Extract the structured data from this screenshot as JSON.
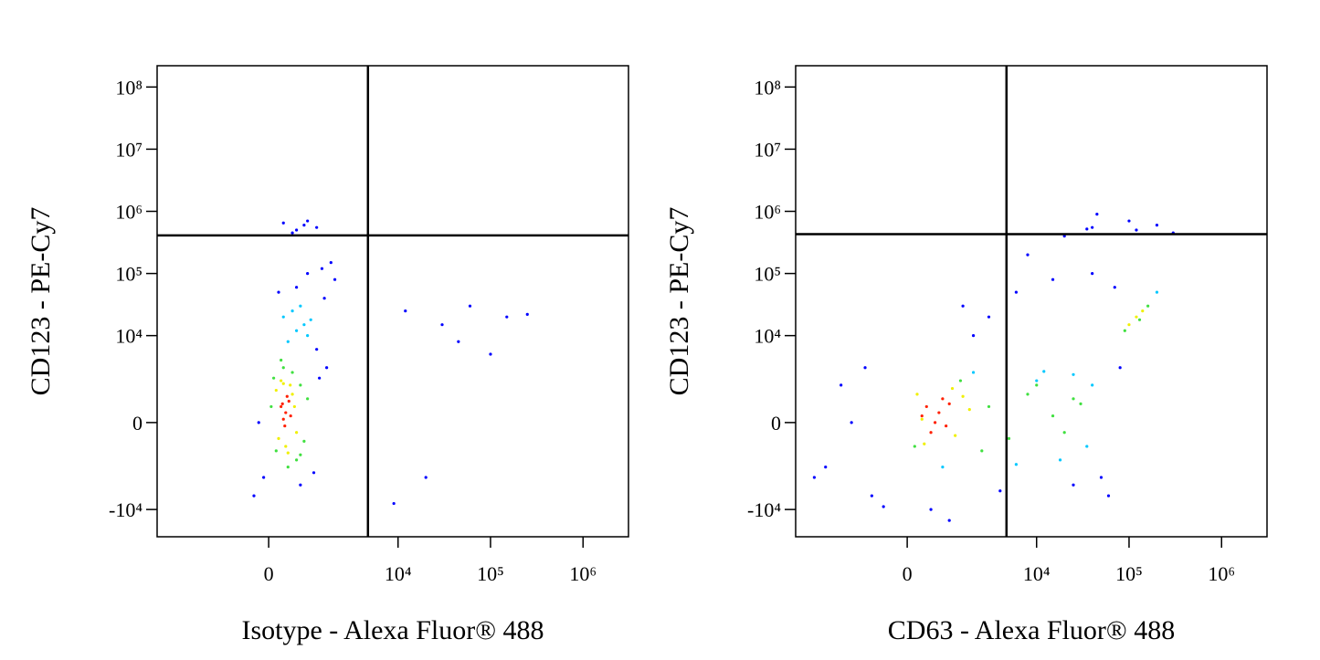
{
  "chart_data": [
    {
      "type": "scatter",
      "x_label": "Isotype - Alexa Fluor® 488",
      "y_label": "CD123 - PE-Cy7",
      "scale": "biexponential",
      "xlim": [
        -6400,
        3100000
      ],
      "ylim": [
        -27500,
        220000000
      ],
      "xticks": [
        0,
        {
          "value": 10000,
          "label": "10⁴"
        },
        {
          "value": 100000,
          "label": "10⁵"
        },
        {
          "value": 1000000,
          "label": "10⁶"
        }
      ],
      "yticks": [
        {
          "value": -10000,
          "label": "-10⁴"
        },
        0,
        {
          "value": 10000,
          "label": "10⁴"
        },
        {
          "value": 100000,
          "label": "10⁵"
        },
        {
          "value": 1000000,
          "label": "10⁶"
        },
        {
          "value": 10000000,
          "label": "10⁷"
        },
        {
          "value": 100000000,
          "label": "10⁸"
        }
      ],
      "gates": {
        "x": 4700,
        "y": 410000
      },
      "series": [
        {
          "color": "#0000ff",
          "x": [
            -200,
            1100,
            1300,
            -100,
            1200,
            1500,
            600,
            900,
            200,
            1400,
            700,
            1600,
            -300,
            2000,
            1800,
            500,
            800,
            12000,
            30000,
            45000,
            60000,
            100000,
            150000,
            250000,
            20000,
            9000,
            600,
            900,
            1200,
            300
          ],
          "values": [
            0,
            -2500,
            2000,
            -3000,
            6000,
            40000,
            60000,
            100000,
            50000,
            120000,
            -4000,
            3000,
            -6000,
            80000,
            150000,
            450000,
            600000,
            25000,
            15000,
            8000,
            30000,
            5000,
            20000,
            22000,
            -3000,
            -8000,
            500000,
            700000,
            550000,
            650000
          ]
        },
        {
          "color": "#00c8ff",
          "x": [
            400,
            600,
            800,
            300,
            900,
            500,
            700,
            1000
          ],
          "values": [
            8000,
            12000,
            15000,
            20000,
            10000,
            25000,
            30000,
            18000
          ]
        },
        {
          "color": "#40e040",
          "x": [
            100,
            700,
            800,
            50,
            600,
            400,
            900,
            150,
            300,
            500,
            700,
            250
          ],
          "values": [
            2000,
            1500,
            -600,
            500,
            -1500,
            -2000,
            800,
            -1000,
            3000,
            2500,
            -1200,
            4000
          ]
        },
        {
          "color": "#f0f000",
          "x": [
            150,
            500,
            600,
            200,
            450,
            550,
            350,
            250,
            400,
            300
          ],
          "values": [
            1200,
            1000,
            -300,
            -500,
            1500,
            500,
            -800,
            1800,
            -1100,
            1600
          ]
        },
        {
          "color": "#ff2000",
          "x": [
            250,
            350,
            420,
            300,
            380,
            460,
            330,
            280
          ],
          "values": [
            500,
            300,
            700,
            100,
            900,
            200,
            -100,
            600
          ]
        }
      ]
    },
    {
      "type": "scatter",
      "x_label": "CD63 - Alexa Fluor® 488",
      "y_label": "CD123 - PE-Cy7",
      "scale": "biexponential",
      "xlim": [
        -6400,
        3100000
      ],
      "ylim": [
        -27500,
        220000000
      ],
      "xticks": [
        0,
        {
          "value": 10000,
          "label": "10⁴"
        },
        {
          "value": 100000,
          "label": "10⁵"
        },
        {
          "value": 1000000,
          "label": "10⁶"
        }
      ],
      "yticks": [
        {
          "value": -10000,
          "label": "-10⁴"
        },
        0,
        {
          "value": 10000,
          "label": "10⁴"
        },
        {
          "value": 100000,
          "label": "10⁵"
        },
        {
          "value": 1000000,
          "label": "10⁶"
        },
        {
          "value": 10000000,
          "label": "10⁷"
        },
        {
          "value": 100000000,
          "label": "10⁸"
        }
      ],
      "gates": {
        "x": 4700,
        "y": 430000
      },
      "series": [
        {
          "color": "#0000ff",
          "x": [
            -1500,
            -3000,
            -800,
            -2000,
            -4000,
            -500,
            3000,
            6000,
            15000,
            40000,
            70000,
            2000,
            4000,
            25000,
            50000,
            80000,
            120000,
            200000,
            300000,
            40000,
            1500,
            8000,
            20000,
            500,
            100000,
            -1000,
            60000,
            1000,
            35000,
            45000
          ],
          "values": [
            0,
            -2000,
            -6000,
            1500,
            -3000,
            -9000,
            20000,
            50000,
            80000,
            100000,
            60000,
            10000,
            -5000,
            -4000,
            -3000,
            3000,
            500000,
            600000,
            450000,
            550000,
            30000,
            200000,
            400000,
            -10000,
            700000,
            3000,
            -6000,
            -15000,
            520000,
            900000
          ]
        },
        {
          "color": "#00c8ff",
          "x": [
            10000,
            18000,
            35000,
            2000,
            6000,
            40000,
            800,
            12000,
            25000,
            200000
          ],
          "values": [
            1800,
            -1500,
            -800,
            2500,
            -1800,
            1500,
            -2000,
            2600,
            2300,
            50000
          ]
        },
        {
          "color": "#40e040",
          "x": [
            3000,
            5000,
            8000,
            15000,
            20000,
            25000,
            2500,
            10000,
            30000,
            150,
            1400,
            90000,
            160000,
            130000
          ],
          "values": [
            500,
            -500,
            1000,
            200,
            -300,
            800,
            -1000,
            1500,
            600,
            -800,
            1800,
            12000,
            30000,
            18000
          ]
        },
        {
          "color": "#f0f000",
          "x": [
            200,
            1200,
            1500,
            350,
            1100,
            300,
            1800,
            120000,
            100000,
            140000
          ],
          "values": [
            1000,
            -400,
            900,
            -700,
            1300,
            100,
            400,
            20000,
            15000,
            25000
          ]
        },
        {
          "color": "#ff2000",
          "x": [
            400,
            600,
            800,
            500,
            700,
            1000,
            300,
            900
          ],
          "values": [
            500,
            0,
            800,
            -300,
            300,
            600,
            200,
            -100
          ]
        }
      ]
    }
  ]
}
